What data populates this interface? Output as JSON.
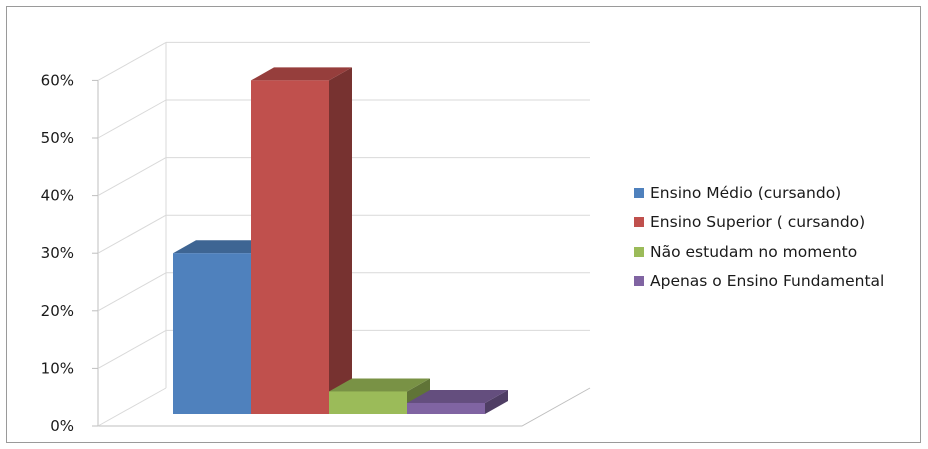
{
  "chart_data": {
    "type": "bar",
    "title": "",
    "xlabel": "",
    "ylabel": "",
    "ylim": [
      0,
      0.6
    ],
    "y_ticks": [
      "0%",
      "10%",
      "20%",
      "30%",
      "40%",
      "50%",
      "60%"
    ],
    "grid": true,
    "three_d": true,
    "legend_position": "right",
    "series": [
      {
        "name": "Ensino Médio (cursando)",
        "value": 0.3,
        "color": "#4f81bd"
      },
      {
        "name": "Ensino Superior ( cursando)",
        "value": 0.6,
        "color": "#c0504d"
      },
      {
        "name": "Não estudam no momento",
        "value": 0.06,
        "color": "#9bbb59"
      },
      {
        "name": "Apenas o Ensino Fundamental",
        "value": 0.04,
        "color": "#8064a2"
      }
    ]
  }
}
